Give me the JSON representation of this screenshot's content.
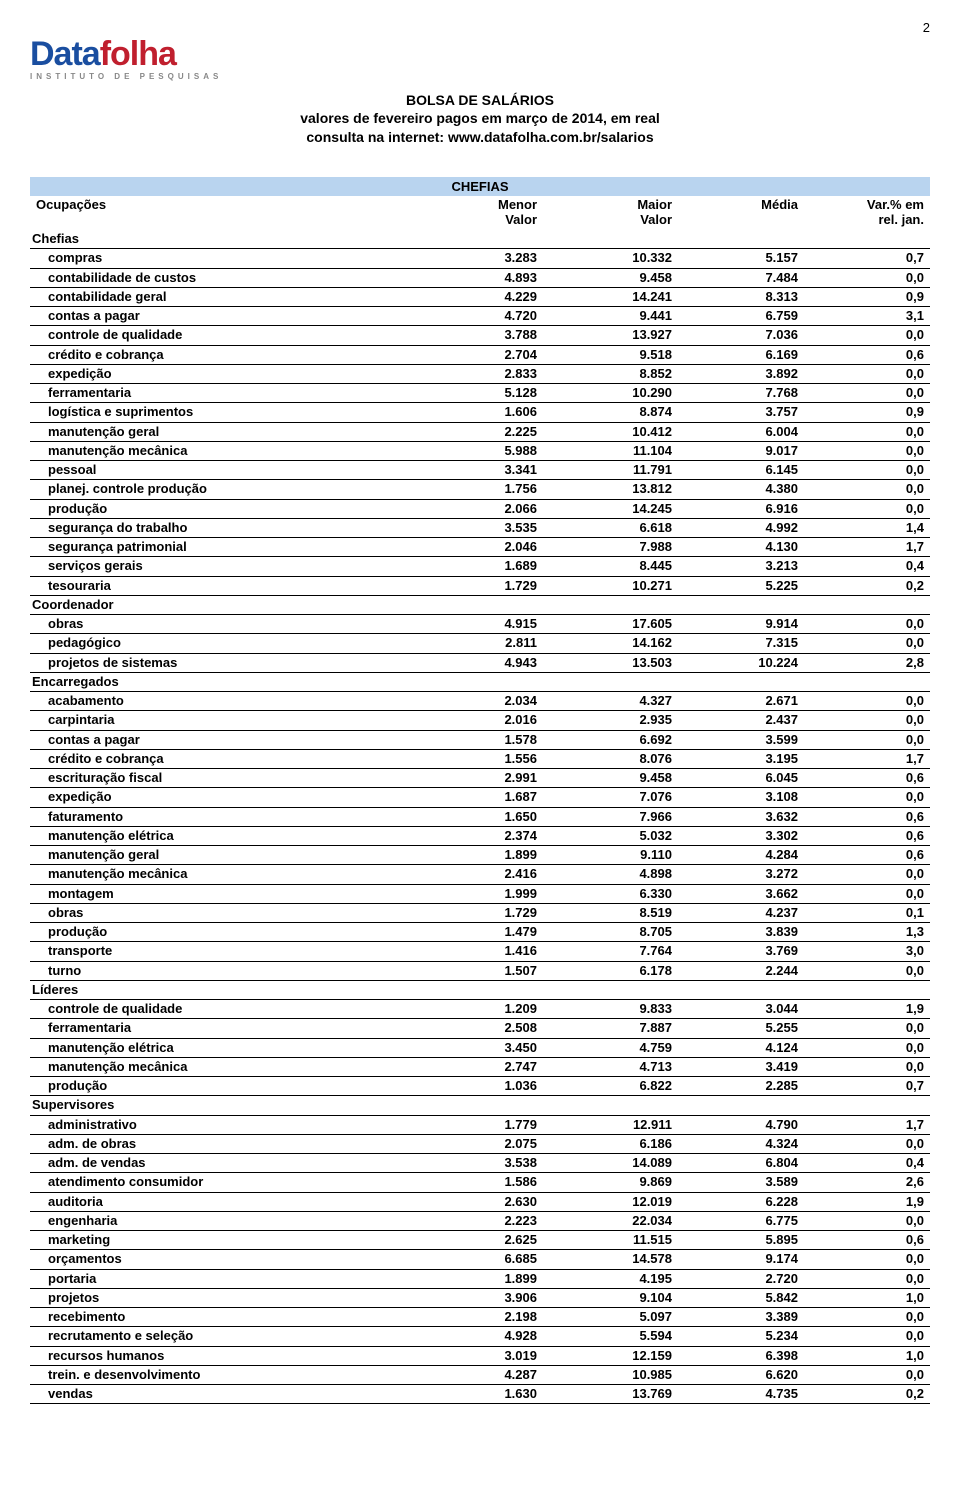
{
  "page_number": "2",
  "logo": {
    "part1": "Data",
    "part2": "folha",
    "sub": "INSTITUTO DE PESQUISAS"
  },
  "title": {
    "line1": "BOLSA DE SALÁRIOS",
    "line2": "valores de fevereiro pagos em março de 2014, em real",
    "line3": "consulta na internet: www.datafolha.com.br/salarios"
  },
  "section_title": "CHEFIAS",
  "columns": {
    "ocupacoes": "Ocupações",
    "menor": "Menor\nValor",
    "maior": "Maior\nValor",
    "media": "Média",
    "var": "Var.% em\nrel. jan."
  },
  "groups": [
    {
      "label": "Chefias",
      "rows": [
        {
          "n": "compras",
          "v": [
            "3.283",
            "10.332",
            "5.157",
            "0,7"
          ]
        },
        {
          "n": "contabilidade de custos",
          "v": [
            "4.893",
            "9.458",
            "7.484",
            "0,0"
          ]
        },
        {
          "n": "contabilidade geral",
          "v": [
            "4.229",
            "14.241",
            "8.313",
            "0,9"
          ]
        },
        {
          "n": "contas a pagar",
          "v": [
            "4.720",
            "9.441",
            "6.759",
            "3,1"
          ]
        },
        {
          "n": "controle de qualidade",
          "v": [
            "3.788",
            "13.927",
            "7.036",
            "0,0"
          ]
        },
        {
          "n": "crédito e cobrança",
          "v": [
            "2.704",
            "9.518",
            "6.169",
            "0,6"
          ]
        },
        {
          "n": "expedição",
          "v": [
            "2.833",
            "8.852",
            "3.892",
            "0,0"
          ]
        },
        {
          "n": "ferramentaria",
          "v": [
            "5.128",
            "10.290",
            "7.768",
            "0,0"
          ]
        },
        {
          "n": "logística e suprimentos",
          "v": [
            "1.606",
            "8.874",
            "3.757",
            "0,9"
          ]
        },
        {
          "n": "manutenção geral",
          "v": [
            "2.225",
            "10.412",
            "6.004",
            "0,0"
          ]
        },
        {
          "n": "manutenção mecânica",
          "v": [
            "5.988",
            "11.104",
            "9.017",
            "0,0"
          ]
        },
        {
          "n": "pessoal",
          "v": [
            "3.341",
            "11.791",
            "6.145",
            "0,0"
          ]
        },
        {
          "n": "planej. controle produção",
          "v": [
            "1.756",
            "13.812",
            "4.380",
            "0,0"
          ]
        },
        {
          "n": "produção",
          "v": [
            "2.066",
            "14.245",
            "6.916",
            "0,0"
          ]
        },
        {
          "n": "segurança do trabalho",
          "v": [
            "3.535",
            "6.618",
            "4.992",
            "1,4"
          ]
        },
        {
          "n": "segurança patrimonial",
          "v": [
            "2.046",
            "7.988",
            "4.130",
            "1,7"
          ]
        },
        {
          "n": "serviços gerais",
          "v": [
            "1.689",
            "8.445",
            "3.213",
            "0,4"
          ]
        },
        {
          "n": "tesouraria",
          "v": [
            "1.729",
            "10.271",
            "5.225",
            "0,2"
          ]
        }
      ]
    },
    {
      "label": "Coordenador",
      "rows": [
        {
          "n": "obras",
          "v": [
            "4.915",
            "17.605",
            "9.914",
            "0,0"
          ]
        },
        {
          "n": "pedagógico",
          "v": [
            "2.811",
            "14.162",
            "7.315",
            "0,0"
          ]
        },
        {
          "n": "projetos de sistemas",
          "v": [
            "4.943",
            "13.503",
            "10.224",
            "2,8"
          ]
        }
      ]
    },
    {
      "label": "Encarregados",
      "rows": [
        {
          "n": "acabamento",
          "v": [
            "2.034",
            "4.327",
            "2.671",
            "0,0"
          ]
        },
        {
          "n": "carpintaria",
          "v": [
            "2.016",
            "2.935",
            "2.437",
            "0,0"
          ]
        },
        {
          "n": "contas a pagar",
          "v": [
            "1.578",
            "6.692",
            "3.599",
            "0,0"
          ]
        },
        {
          "n": "crédito e cobrança",
          "v": [
            "1.556",
            "8.076",
            "3.195",
            "1,7"
          ]
        },
        {
          "n": "escrituração fiscal",
          "v": [
            "2.991",
            "9.458",
            "6.045",
            "0,6"
          ]
        },
        {
          "n": "expedição",
          "v": [
            "1.687",
            "7.076",
            "3.108",
            "0,0"
          ]
        },
        {
          "n": "faturamento",
          "v": [
            "1.650",
            "7.966",
            "3.632",
            "0,6"
          ]
        },
        {
          "n": "manutenção elétrica",
          "v": [
            "2.374",
            "5.032",
            "3.302",
            "0,6"
          ]
        },
        {
          "n": "manutenção geral",
          "v": [
            "1.899",
            "9.110",
            "4.284",
            "0,6"
          ]
        },
        {
          "n": "manutenção mecânica",
          "v": [
            "2.416",
            "4.898",
            "3.272",
            "0,0"
          ]
        },
        {
          "n": "montagem",
          "v": [
            "1.999",
            "6.330",
            "3.662",
            "0,0"
          ]
        },
        {
          "n": "obras",
          "v": [
            "1.729",
            "8.519",
            "4.237",
            "0,1"
          ]
        },
        {
          "n": "produção",
          "v": [
            "1.479",
            "8.705",
            "3.839",
            "1,3"
          ]
        },
        {
          "n": "transporte",
          "v": [
            "1.416",
            "7.764",
            "3.769",
            "3,0"
          ]
        },
        {
          "n": "turno",
          "v": [
            "1.507",
            "6.178",
            "2.244",
            "0,0"
          ]
        }
      ]
    },
    {
      "label": "Líderes",
      "rows": [
        {
          "n": "controle de qualidade",
          "v": [
            "1.209",
            "9.833",
            "3.044",
            "1,9"
          ]
        },
        {
          "n": "ferramentaria",
          "v": [
            "2.508",
            "7.887",
            "5.255",
            "0,0"
          ]
        },
        {
          "n": "manutenção elétrica",
          "v": [
            "3.450",
            "4.759",
            "4.124",
            "0,0"
          ]
        },
        {
          "n": "manutenção mecânica",
          "v": [
            "2.747",
            "4.713",
            "3.419",
            "0,0"
          ]
        },
        {
          "n": "produção",
          "v": [
            "1.036",
            "6.822",
            "2.285",
            "0,7"
          ]
        }
      ]
    },
    {
      "label": "Supervisores",
      "rows": [
        {
          "n": "administrativo",
          "v": [
            "1.779",
            "12.911",
            "4.790",
            "1,7"
          ]
        },
        {
          "n": "adm. de obras",
          "v": [
            "2.075",
            "6.186",
            "4.324",
            "0,0"
          ]
        },
        {
          "n": "adm. de vendas",
          "v": [
            "3.538",
            "14.089",
            "6.804",
            "0,4"
          ]
        },
        {
          "n": "atendimento consumidor",
          "v": [
            "1.586",
            "9.869",
            "3.589",
            "2,6"
          ]
        },
        {
          "n": "auditoria",
          "v": [
            "2.630",
            "12.019",
            "6.228",
            "1,9"
          ]
        },
        {
          "n": "engenharia",
          "v": [
            "2.223",
            "22.034",
            "6.775",
            "0,0"
          ]
        },
        {
          "n": "marketing",
          "v": [
            "2.625",
            "11.515",
            "5.895",
            "0,6"
          ]
        },
        {
          "n": "orçamentos",
          "v": [
            "6.685",
            "14.578",
            "9.174",
            "0,0"
          ]
        },
        {
          "n": "portaria",
          "v": [
            "1.899",
            "4.195",
            "2.720",
            "0,0"
          ]
        },
        {
          "n": "projetos",
          "v": [
            "3.906",
            "9.104",
            "5.842",
            "1,0"
          ]
        },
        {
          "n": "recebimento",
          "v": [
            "2.198",
            "5.097",
            "3.389",
            "0,0"
          ]
        },
        {
          "n": "recrutamento e seleção",
          "v": [
            "4.928",
            "5.594",
            "5.234",
            "0,0"
          ]
        },
        {
          "n": "recursos humanos",
          "v": [
            "3.019",
            "12.159",
            "6.398",
            "1,0"
          ]
        },
        {
          "n": "trein. e desenvolvimento",
          "v": [
            "4.287",
            "10.985",
            "6.620",
            "0,0"
          ]
        },
        {
          "n": "vendas",
          "v": [
            "1.630",
            "13.769",
            "4.735",
            "0,2"
          ]
        }
      ]
    }
  ]
}
